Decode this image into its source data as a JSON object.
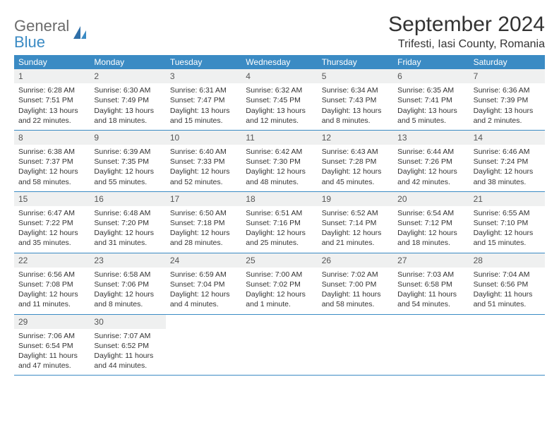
{
  "brand": {
    "general": "General",
    "blue": "Blue"
  },
  "title": "September 2024",
  "location": "Trifesti, Iasi County, Romania",
  "colors": {
    "header_bg": "#3b8bc4",
    "header_text": "#ffffff",
    "day_band_bg": "#eff0f0",
    "text": "#333333",
    "logo_gray": "#6b6b6b",
    "logo_blue": "#3b8bc4",
    "row_border": "#3b8bc4"
  },
  "weekdays": [
    "Sunday",
    "Monday",
    "Tuesday",
    "Wednesday",
    "Thursday",
    "Friday",
    "Saturday"
  ],
  "weeks": [
    [
      {
        "n": "1",
        "sunrise": "Sunrise: 6:28 AM",
        "sunset": "Sunset: 7:51 PM",
        "dl1": "Daylight: 13 hours",
        "dl2": "and 22 minutes."
      },
      {
        "n": "2",
        "sunrise": "Sunrise: 6:30 AM",
        "sunset": "Sunset: 7:49 PM",
        "dl1": "Daylight: 13 hours",
        "dl2": "and 18 minutes."
      },
      {
        "n": "3",
        "sunrise": "Sunrise: 6:31 AM",
        "sunset": "Sunset: 7:47 PM",
        "dl1": "Daylight: 13 hours",
        "dl2": "and 15 minutes."
      },
      {
        "n": "4",
        "sunrise": "Sunrise: 6:32 AM",
        "sunset": "Sunset: 7:45 PM",
        "dl1": "Daylight: 13 hours",
        "dl2": "and 12 minutes."
      },
      {
        "n": "5",
        "sunrise": "Sunrise: 6:34 AM",
        "sunset": "Sunset: 7:43 PM",
        "dl1": "Daylight: 13 hours",
        "dl2": "and 8 minutes."
      },
      {
        "n": "6",
        "sunrise": "Sunrise: 6:35 AM",
        "sunset": "Sunset: 7:41 PM",
        "dl1": "Daylight: 13 hours",
        "dl2": "and 5 minutes."
      },
      {
        "n": "7",
        "sunrise": "Sunrise: 6:36 AM",
        "sunset": "Sunset: 7:39 PM",
        "dl1": "Daylight: 13 hours",
        "dl2": "and 2 minutes."
      }
    ],
    [
      {
        "n": "8",
        "sunrise": "Sunrise: 6:38 AM",
        "sunset": "Sunset: 7:37 PM",
        "dl1": "Daylight: 12 hours",
        "dl2": "and 58 minutes."
      },
      {
        "n": "9",
        "sunrise": "Sunrise: 6:39 AM",
        "sunset": "Sunset: 7:35 PM",
        "dl1": "Daylight: 12 hours",
        "dl2": "and 55 minutes."
      },
      {
        "n": "10",
        "sunrise": "Sunrise: 6:40 AM",
        "sunset": "Sunset: 7:33 PM",
        "dl1": "Daylight: 12 hours",
        "dl2": "and 52 minutes."
      },
      {
        "n": "11",
        "sunrise": "Sunrise: 6:42 AM",
        "sunset": "Sunset: 7:30 PM",
        "dl1": "Daylight: 12 hours",
        "dl2": "and 48 minutes."
      },
      {
        "n": "12",
        "sunrise": "Sunrise: 6:43 AM",
        "sunset": "Sunset: 7:28 PM",
        "dl1": "Daylight: 12 hours",
        "dl2": "and 45 minutes."
      },
      {
        "n": "13",
        "sunrise": "Sunrise: 6:44 AM",
        "sunset": "Sunset: 7:26 PM",
        "dl1": "Daylight: 12 hours",
        "dl2": "and 42 minutes."
      },
      {
        "n": "14",
        "sunrise": "Sunrise: 6:46 AM",
        "sunset": "Sunset: 7:24 PM",
        "dl1": "Daylight: 12 hours",
        "dl2": "and 38 minutes."
      }
    ],
    [
      {
        "n": "15",
        "sunrise": "Sunrise: 6:47 AM",
        "sunset": "Sunset: 7:22 PM",
        "dl1": "Daylight: 12 hours",
        "dl2": "and 35 minutes."
      },
      {
        "n": "16",
        "sunrise": "Sunrise: 6:48 AM",
        "sunset": "Sunset: 7:20 PM",
        "dl1": "Daylight: 12 hours",
        "dl2": "and 31 minutes."
      },
      {
        "n": "17",
        "sunrise": "Sunrise: 6:50 AM",
        "sunset": "Sunset: 7:18 PM",
        "dl1": "Daylight: 12 hours",
        "dl2": "and 28 minutes."
      },
      {
        "n": "18",
        "sunrise": "Sunrise: 6:51 AM",
        "sunset": "Sunset: 7:16 PM",
        "dl1": "Daylight: 12 hours",
        "dl2": "and 25 minutes."
      },
      {
        "n": "19",
        "sunrise": "Sunrise: 6:52 AM",
        "sunset": "Sunset: 7:14 PM",
        "dl1": "Daylight: 12 hours",
        "dl2": "and 21 minutes."
      },
      {
        "n": "20",
        "sunrise": "Sunrise: 6:54 AM",
        "sunset": "Sunset: 7:12 PM",
        "dl1": "Daylight: 12 hours",
        "dl2": "and 18 minutes."
      },
      {
        "n": "21",
        "sunrise": "Sunrise: 6:55 AM",
        "sunset": "Sunset: 7:10 PM",
        "dl1": "Daylight: 12 hours",
        "dl2": "and 15 minutes."
      }
    ],
    [
      {
        "n": "22",
        "sunrise": "Sunrise: 6:56 AM",
        "sunset": "Sunset: 7:08 PM",
        "dl1": "Daylight: 12 hours",
        "dl2": "and 11 minutes."
      },
      {
        "n": "23",
        "sunrise": "Sunrise: 6:58 AM",
        "sunset": "Sunset: 7:06 PM",
        "dl1": "Daylight: 12 hours",
        "dl2": "and 8 minutes."
      },
      {
        "n": "24",
        "sunrise": "Sunrise: 6:59 AM",
        "sunset": "Sunset: 7:04 PM",
        "dl1": "Daylight: 12 hours",
        "dl2": "and 4 minutes."
      },
      {
        "n": "25",
        "sunrise": "Sunrise: 7:00 AM",
        "sunset": "Sunset: 7:02 PM",
        "dl1": "Daylight: 12 hours",
        "dl2": "and 1 minute."
      },
      {
        "n": "26",
        "sunrise": "Sunrise: 7:02 AM",
        "sunset": "Sunset: 7:00 PM",
        "dl1": "Daylight: 11 hours",
        "dl2": "and 58 minutes."
      },
      {
        "n": "27",
        "sunrise": "Sunrise: 7:03 AM",
        "sunset": "Sunset: 6:58 PM",
        "dl1": "Daylight: 11 hours",
        "dl2": "and 54 minutes."
      },
      {
        "n": "28",
        "sunrise": "Sunrise: 7:04 AM",
        "sunset": "Sunset: 6:56 PM",
        "dl1": "Daylight: 11 hours",
        "dl2": "and 51 minutes."
      }
    ],
    [
      {
        "n": "29",
        "sunrise": "Sunrise: 7:06 AM",
        "sunset": "Sunset: 6:54 PM",
        "dl1": "Daylight: 11 hours",
        "dl2": "and 47 minutes."
      },
      {
        "n": "30",
        "sunrise": "Sunrise: 7:07 AM",
        "sunset": "Sunset: 6:52 PM",
        "dl1": "Daylight: 11 hours",
        "dl2": "and 44 minutes."
      },
      null,
      null,
      null,
      null,
      null
    ]
  ]
}
